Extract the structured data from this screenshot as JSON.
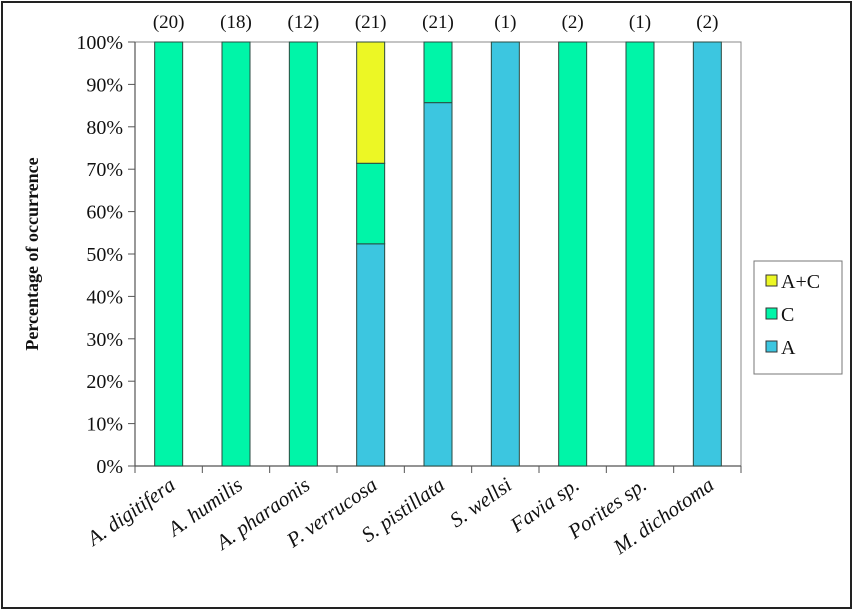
{
  "chart_data": {
    "type": "bar",
    "stacked": true,
    "title": "",
    "xlabel": "",
    "ylabel": "Percentage of occurrence",
    "ylim": [
      0,
      100
    ],
    "yticks": [
      "0%",
      "10%",
      "20%",
      "30%",
      "40%",
      "50%",
      "60%",
      "70%",
      "80%",
      "90%",
      "100%"
    ],
    "grid": false,
    "legend_position": "right",
    "categories": [
      "A. digitifera",
      "A. humilis",
      "A. pharaonis",
      "P. verrucosa",
      "S. pistillata",
      "S. wellsi",
      "Favia sp.",
      "Porites sp.",
      "M. dichotoma"
    ],
    "sample_counts": [
      "(20)",
      "(18)",
      "(12)",
      "(21)",
      "(21)",
      "(1)",
      "(2)",
      "(1)",
      "(2)"
    ],
    "series": [
      {
        "name": "A",
        "color": "#3cc6e0",
        "values": [
          0,
          0,
          0,
          52.4,
          85.7,
          100,
          0,
          0,
          100
        ]
      },
      {
        "name": "C",
        "color": "#00f5a8",
        "values": [
          100,
          100,
          100,
          19.0,
          14.3,
          0,
          100,
          100,
          0
        ]
      },
      {
        "name": "A+C",
        "color": "#ecf725",
        "values": [
          0,
          0,
          0,
          28.6,
          0,
          0,
          0,
          0,
          0
        ]
      }
    ],
    "legend_order": [
      "A+C",
      "C",
      "A"
    ]
  }
}
